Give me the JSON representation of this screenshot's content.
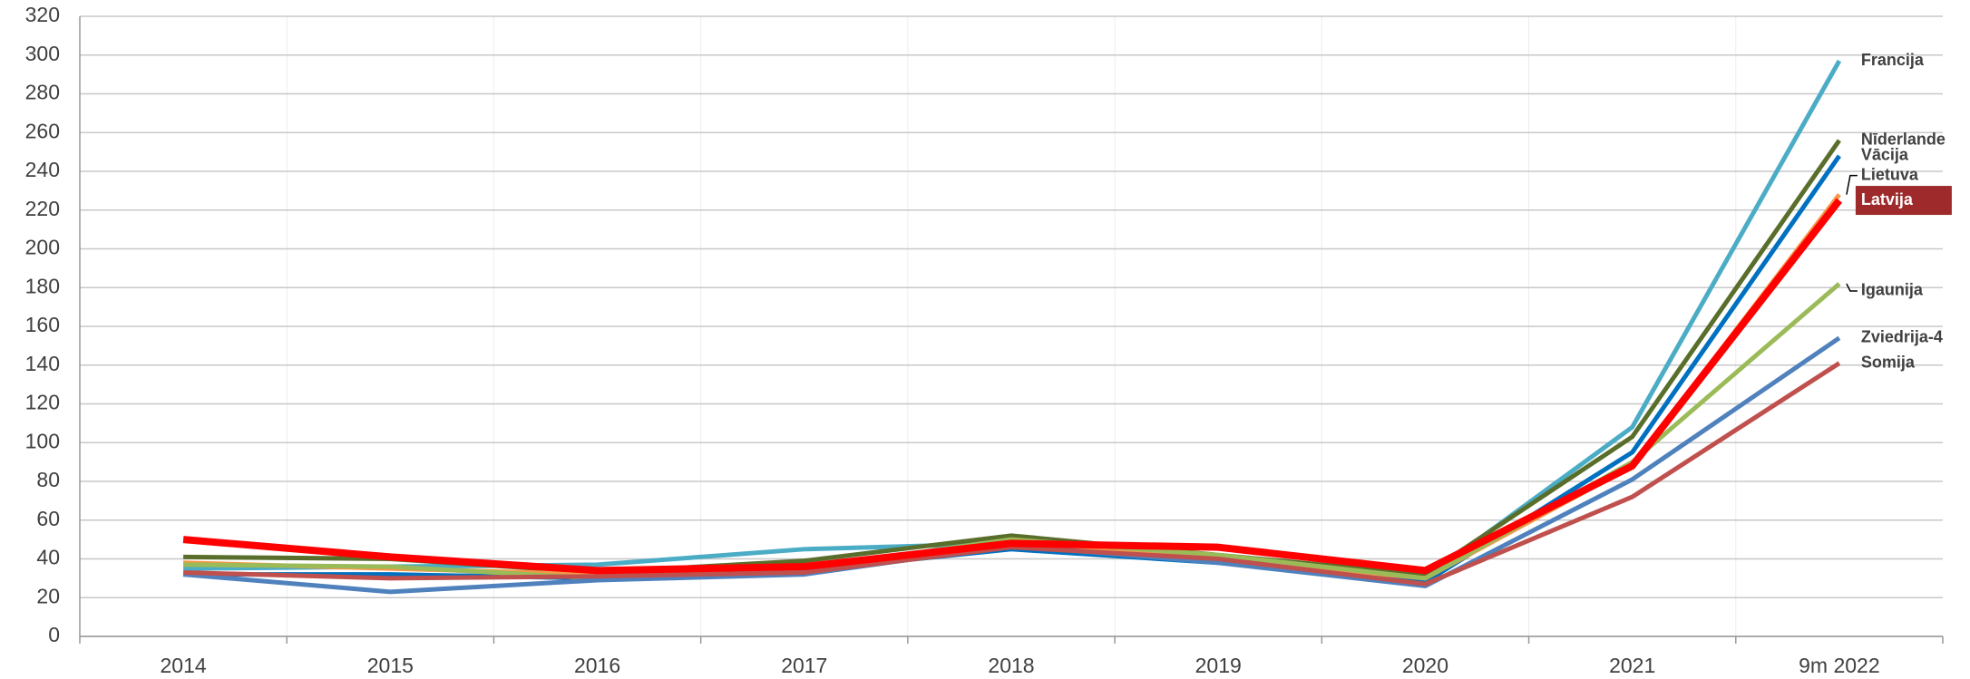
{
  "chart_data": {
    "type": "line",
    "categories": [
      "2014",
      "2015",
      "2016",
      "2017",
      "2018",
      "2019",
      "2020",
      "2021",
      "9m 2022"
    ],
    "series": [
      {
        "name": "Francija",
        "color": "#4bacc6",
        "values": [
          35,
          36,
          37,
          45,
          48,
          40,
          30,
          108,
          297
        ]
      },
      {
        "name": "Nīderlande",
        "color": "#5a6e2c",
        "values": [
          41,
          40,
          33,
          39,
          52,
          42,
          32,
          103,
          256
        ]
      },
      {
        "name": "Vācija",
        "color": "#0070c0",
        "values": [
          32,
          32,
          30,
          34,
          45,
          38,
          28,
          95,
          248
        ]
      },
      {
        "name": "Lietuva",
        "color": "#f79646",
        "values": [
          38,
          35,
          32,
          36,
          48,
          40,
          30,
          88,
          228
        ]
      },
      {
        "name": "Igaunija",
        "color": "#9bbb59",
        "values": [
          37,
          36,
          30,
          35,
          50,
          42,
          30,
          90,
          182
        ]
      },
      {
        "name": "Zviedrija-4",
        "color": "#4f81bd",
        "values": [
          32,
          23,
          29,
          32,
          47,
          38,
          26,
          81,
          154
        ]
      },
      {
        "name": "Somija",
        "color": "#c0504d",
        "values": [
          33,
          30,
          31,
          33,
          46,
          40,
          27,
          72,
          141
        ]
      },
      {
        "name": "Latvija",
        "color": "#ff0000",
        "values": [
          50,
          41,
          34,
          36,
          48,
          46,
          34,
          88,
          225
        ]
      }
    ],
    "ylim": [
      0,
      320
    ],
    "yticks": [
      0,
      20,
      40,
      60,
      80,
      100,
      120,
      140,
      160,
      180,
      200,
      220,
      240,
      260,
      280,
      300,
      320
    ],
    "grid": true
  }
}
